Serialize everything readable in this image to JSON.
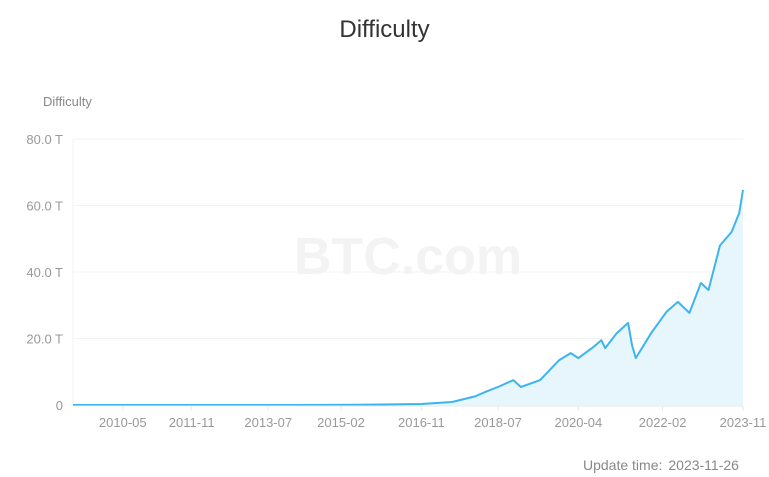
{
  "title": "Difficulty",
  "update": {
    "label": "Update time:",
    "value": "2023-11-26"
  },
  "watermark": "BTC.com",
  "colors": {
    "line": "#3db4f2",
    "fill": "#e7f5fc",
    "grid": "#f1f3f5"
  },
  "chart_data": {
    "type": "area",
    "ylabel": "Difficulty",
    "ylim": [
      0,
      80
    ],
    "y_unit": "T",
    "yticks": [
      "0",
      "20.0 T",
      "40.0 T",
      "60.0 T",
      "80.0 T"
    ],
    "xticks": [
      "2010-05",
      "2011-11",
      "2013-07",
      "2015-02",
      "2016-11",
      "2018-07",
      "2020-04",
      "2022-02",
      "2023-11"
    ],
    "xlim": [
      "2009-04",
      "2023-11"
    ],
    "grid": true,
    "points": [
      [
        "2009-04",
        0
      ],
      [
        "2012-01",
        0.002
      ],
      [
        "2014-01",
        0.002
      ],
      [
        "2015-06",
        0.05
      ],
      [
        "2016-06",
        0.2
      ],
      [
        "2016-11",
        0.3
      ],
      [
        "2017-07",
        0.9
      ],
      [
        "2018-01",
        2.6
      ],
      [
        "2018-04",
        4.1
      ],
      [
        "2018-07",
        5.4
      ],
      [
        "2018-11",
        7.5
      ],
      [
        "2019-01",
        5.4
      ],
      [
        "2019-06",
        7.5
      ],
      [
        "2019-11",
        13.5
      ],
      [
        "2020-02",
        15.6
      ],
      [
        "2020-04",
        14.1
      ],
      [
        "2020-08",
        17.5
      ],
      [
        "2020-10",
        19.5
      ],
      [
        "2020-11",
        17.1
      ],
      [
        "2021-02",
        21.6
      ],
      [
        "2021-05",
        24.7
      ],
      [
        "2021-06",
        18.0
      ],
      [
        "2021-07",
        14.1
      ],
      [
        "2021-11",
        21.6
      ],
      [
        "2022-03",
        28.0
      ],
      [
        "2022-06",
        31.0
      ],
      [
        "2022-09",
        27.7
      ],
      [
        "2022-12",
        36.7
      ],
      [
        "2023-02",
        34.6
      ],
      [
        "2023-05",
        48.0
      ],
      [
        "2023-08",
        52.0
      ],
      [
        "2023-10",
        57.7
      ],
      [
        "2023-11",
        64.7
      ]
    ]
  }
}
